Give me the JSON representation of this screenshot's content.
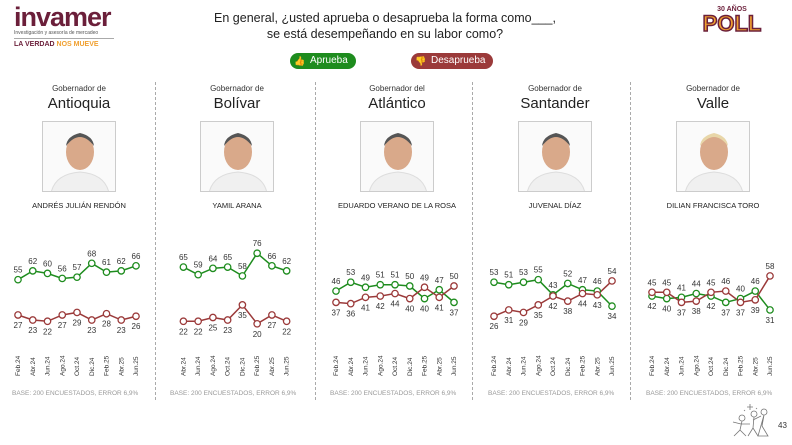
{
  "header": {
    "logo_brand": "invamer",
    "logo_sub": "Investigación y asesoría de mercadeo",
    "logo_tag_a": "LA VERDAD",
    "logo_tag_b": "NOS MUEVE",
    "question_line1": "En general, ¿usted aprueba o desaprueba la forma como___,",
    "question_line2": "se está desempeñando en su labor como?",
    "poll_years": "30 AÑOS",
    "poll_word": "POLL"
  },
  "legend": {
    "approve": "Aprueba",
    "disapprove": "Desaprueba"
  },
  "colors": {
    "approve": "#1e8c1e",
    "disapprove": "#9b3a3a"
  },
  "footer": {
    "page": "43"
  },
  "chart_data": [
    {
      "type": "line",
      "title_prefix": "Gobernador de",
      "title": "Antioquia",
      "person": "ANDRÉS JULIÁN RENDÓN",
      "categories": [
        "Feb.24",
        "Abr.24",
        "Jun.24",
        "Ago.24",
        "Oct.24",
        "Dic.24",
        "Feb.25",
        "Abr.25",
        "Jun.25"
      ],
      "series": [
        {
          "name": "Aprueba",
          "values": [
            55,
            62,
            60,
            56,
            57,
            68,
            61,
            62,
            66
          ]
        },
        {
          "name": "Desaprueba",
          "values": [
            27,
            23,
            22,
            27,
            29,
            23,
            28,
            23,
            26
          ]
        }
      ],
      "note": "BASE: 200 ENCUESTADOS, ERROR 6,9%"
    },
    {
      "type": "line",
      "title_prefix": "Gobernador de",
      "title": "Bolívar",
      "person": "YAMIL ARANA",
      "categories": [
        "Abr.24",
        "Jun.24",
        "Ago.24",
        "Oct.24",
        "Dic.24",
        "Feb.25",
        "Abr.25",
        "Jun.25"
      ],
      "series": [
        {
          "name": "Aprueba",
          "values": [
            65,
            59,
            64,
            65,
            58,
            76,
            66,
            62
          ]
        },
        {
          "name": "Desaprueba",
          "values": [
            22,
            22,
            25,
            23,
            35,
            20,
            27,
            22
          ]
        }
      ],
      "note": "BASE: 200 ENCUESTADOS, ERROR 6,9%"
    },
    {
      "type": "line",
      "title_prefix": "Gobernador del",
      "title": "Atlántico",
      "person": "EDUARDO VERANO DE LA ROSA",
      "categories": [
        "Feb.24",
        "Abr.24",
        "Jun.24",
        "Ago.24",
        "Oct.24",
        "Dic.24",
        "Feb.25",
        "Abr.25",
        "Jun.25"
      ],
      "series": [
        {
          "name": "Aprueba",
          "values": [
            46,
            53,
            49,
            51,
            51,
            50,
            40,
            47,
            37
          ]
        },
        {
          "name": "Desaprueba",
          "values": [
            37,
            36,
            41,
            42,
            44,
            40,
            49,
            41,
            50
          ]
        }
      ],
      "note": "BASE: 200 ENCUESTADOS, ERROR 6,9%"
    },
    {
      "type": "line",
      "title_prefix": "Gobernador de",
      "title": "Santander",
      "person": "JUVENAL DÍAZ",
      "categories": [
        "Feb.24",
        "Abr.24",
        "Jun.24",
        "Ago.24",
        "Oct.24",
        "Dic.24",
        "Feb.25",
        "Abr.25",
        "Jun.25"
      ],
      "series": [
        {
          "name": "Aprueba",
          "values": [
            53,
            51,
            53,
            55,
            43,
            52,
            47,
            46,
            34
          ]
        },
        {
          "name": "Desaprueba",
          "values": [
            26,
            31,
            29,
            35,
            42,
            38,
            44,
            43,
            54
          ]
        }
      ],
      "note": "BASE: 200 ENCUESTADOS, ERROR 6,9%"
    },
    {
      "type": "line",
      "title_prefix": "Gobernador de",
      "title": "Valle",
      "person": "DILIAN FRANCISCA TORO",
      "categories": [
        "Feb.24",
        "Abr.24",
        "Jun.24",
        "Ago.24",
        "Oct.24",
        "Dic.24",
        "Feb.25",
        "Abr.25",
        "Jun.25"
      ],
      "series": [
        {
          "name": "Aprueba",
          "values": [
            42,
            40,
            41,
            44,
            42,
            37,
            40,
            46,
            31
          ]
        },
        {
          "name": "Desaprueba",
          "values": [
            45,
            45,
            37,
            38,
            45,
            46,
            37,
            39,
            58
          ]
        }
      ],
      "note": "BASE: 200 ENCUESTADOS, ERROR 6,9%"
    }
  ]
}
